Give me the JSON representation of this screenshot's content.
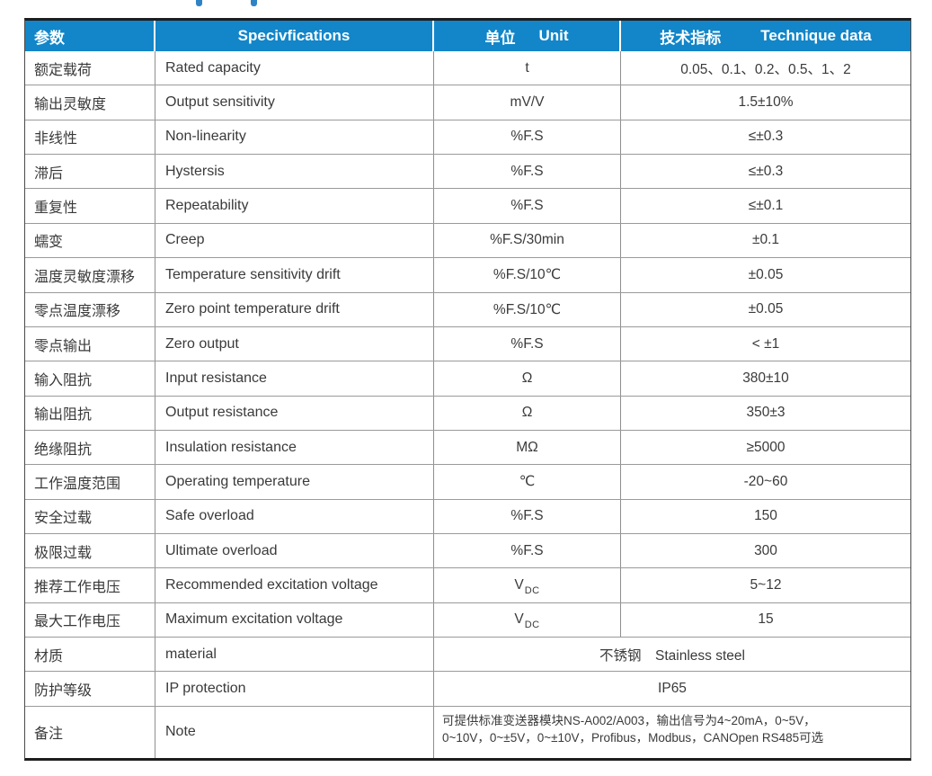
{
  "colors": {
    "header_bg": "#1286c9",
    "header_text": "#ffffff",
    "grid_line": "#8f8f8f",
    "outer_border": "#1d1d1d",
    "body_text": "#3a3a3a"
  },
  "table": {
    "header": {
      "param_zh": "参数",
      "spec": "Specivfications",
      "unit_zh": "单位",
      "unit_en": "Unit",
      "tech_zh": "技术指标",
      "tech_en": "Technique data"
    },
    "rows": [
      {
        "zh": "额定载荷",
        "en": "Rated capacity",
        "unit": "t",
        "val": "0.05、0.1、0.2、0.5、1、2"
      },
      {
        "zh": "输出灵敏度",
        "en": "Output sensitivity",
        "unit": "mV/V",
        "val": "1.5±10%"
      },
      {
        "zh": "非线性",
        "en": "Non-linearity",
        "unit": "%F.S",
        "val": "≤±0.3"
      },
      {
        "zh": "滞后",
        "en": "Hystersis",
        "unit": "%F.S",
        "val": "≤±0.3"
      },
      {
        "zh": "重复性",
        "en": "Repeatability",
        "unit": "%F.S",
        "val": "≤±0.1"
      },
      {
        "zh": "蠕变",
        "en": "Creep",
        "unit": "%F.S/30min",
        "val": "±0.1"
      },
      {
        "zh": "温度灵敏度漂移",
        "en": "Temperature sensitivity drift",
        "unit": "%F.S/10℃",
        "val": "±0.05"
      },
      {
        "zh": "零点温度漂移",
        "en": "Zero point temperature drift",
        "unit": "%F.S/10℃",
        "val": "±0.05"
      },
      {
        "zh": "零点输出",
        "en": "Zero output",
        "unit": "%F.S",
        "val": "< ±1"
      },
      {
        "zh": "输入阻抗",
        "en": "Input resistance",
        "unit": "Ω",
        "val": "380±10"
      },
      {
        "zh": "输出阻抗",
        "en": "Output resistance",
        "unit": "Ω",
        "val": "350±3"
      },
      {
        "zh": "绝缘阻抗",
        "en": "Insulation resistance",
        "unit": "MΩ",
        "val": "≥5000"
      },
      {
        "zh": "工作温度范围",
        "en": "Operating temperature",
        "unit": "℃",
        "val": "-20~60"
      },
      {
        "zh": "安全过载",
        "en": "Safe overload",
        "unit": "%F.S",
        "val": "150"
      },
      {
        "zh": "极限过载",
        "en": "Ultimate overload",
        "unit": "%F.S",
        "val": "300"
      },
      {
        "zh": "推荐工作电压",
        "en": "Recommended excitation voltage",
        "unit": "V",
        "unit_sub": "DC",
        "val": "5~12"
      },
      {
        "zh": "最大工作电压",
        "en": "Maximum excitation voltage",
        "unit": "V",
        "unit_sub": "DC",
        "val": "15"
      },
      {
        "zh": "材质",
        "en": "material",
        "merged": true,
        "val": "不锈钢　Stainless steel"
      },
      {
        "zh": "防护等级",
        "en": "IP protection",
        "merged": true,
        "val": "IP65"
      },
      {
        "zh": "备注",
        "en": "Note",
        "merged": true,
        "note": true,
        "val_lines": [
          "可提供标准变送器模块NS-A002/A003，输出信号为4~20mA，0~5V，",
          "0~10V，0~±5V，0~±10V，Profibus，Modbus，CANOpen RS485可选"
        ]
      }
    ]
  }
}
